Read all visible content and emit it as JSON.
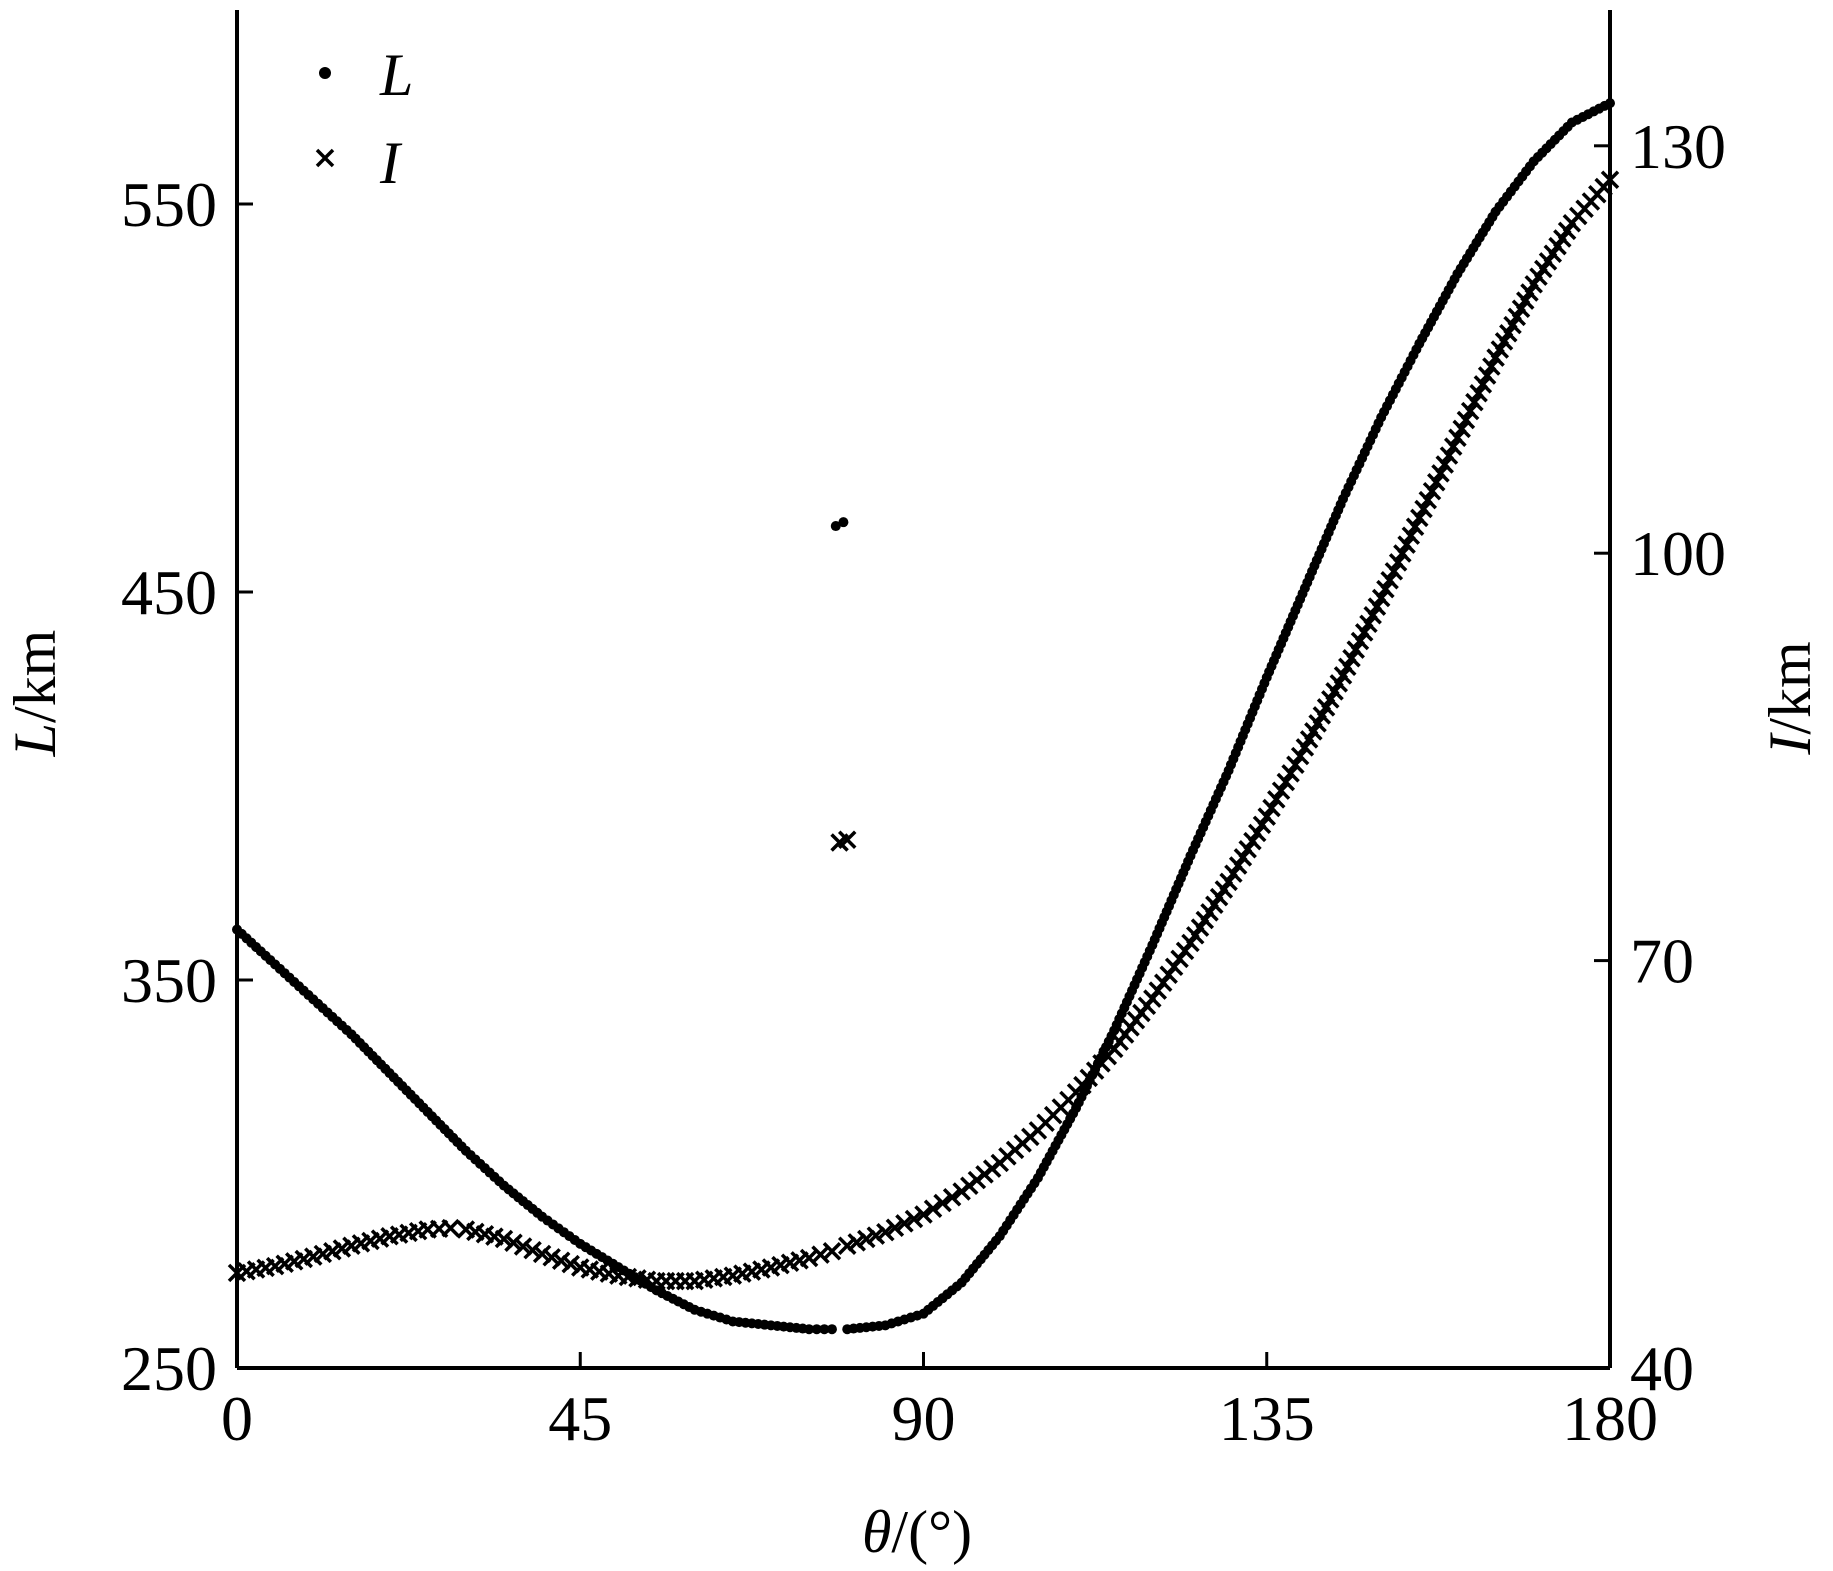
{
  "chart_data": {
    "type": "scatter",
    "x_axis": {
      "label_var": "θ",
      "label_unit": "/(°)",
      "range": [
        0,
        180
      ],
      "ticks": [
        0,
        45,
        90,
        135,
        180
      ],
      "tick_labels": [
        "0",
        "45",
        "90",
        "135",
        "180"
      ]
    },
    "y_axis_left": {
      "label_var": "L",
      "label_unit": "/km",
      "range": [
        250,
        600
      ],
      "ticks": [
        250,
        350,
        450,
        550
      ],
      "tick_labels": [
        "250",
        "350",
        "450",
        "550"
      ]
    },
    "y_axis_right": {
      "label_var": "I",
      "label_unit": "/km",
      "range": [
        40,
        140
      ],
      "ticks": [
        40,
        70,
        100,
        130
      ],
      "tick_labels": [
        "40",
        "70",
        "100",
        "130"
      ]
    },
    "legend": {
      "position": "top-left",
      "items": [
        {
          "label": "L",
          "marker": "dot"
        },
        {
          "label": "I",
          "marker": "x"
        }
      ]
    },
    "series": [
      {
        "name": "L",
        "axis": "left",
        "marker": "dot",
        "points": [
          [
            0,
            363
          ],
          [
            5,
            354
          ],
          [
            10,
            345
          ],
          [
            15,
            336
          ],
          [
            20,
            326
          ],
          [
            25,
            316
          ],
          [
            30,
            306
          ],
          [
            35,
            297
          ],
          [
            40,
            289
          ],
          [
            45,
            282
          ],
          [
            50,
            276
          ],
          [
            55,
            270
          ],
          [
            60,
            265
          ],
          [
            65,
            262
          ],
          [
            70,
            261
          ],
          [
            75,
            260
          ],
          [
            78,
            260
          ],
          [
            78.5,
            467
          ],
          [
            79.5,
            468
          ],
          [
            80,
            260
          ],
          [
            85,
            261
          ],
          [
            90,
            264
          ],
          [
            95,
            272
          ],
          [
            100,
            284
          ],
          [
            105,
            299
          ],
          [
            110,
            317
          ],
          [
            115,
            337
          ],
          [
            120,
            359
          ],
          [
            125,
            382
          ],
          [
            130,
            404
          ],
          [
            135,
            428
          ],
          [
            140,
            451
          ],
          [
            145,
            474
          ],
          [
            150,
            495
          ],
          [
            155,
            514
          ],
          [
            160,
            532
          ],
          [
            165,
            548
          ],
          [
            170,
            561
          ],
          [
            175,
            571
          ],
          [
            180,
            576
          ]
        ]
      },
      {
        "name": "I",
        "axis": "right",
        "marker": "x",
        "points": [
          [
            0,
            47
          ],
          [
            5,
            47.5
          ],
          [
            10,
            48.2
          ],
          [
            15,
            49
          ],
          [
            20,
            49.7
          ],
          [
            25,
            50.2
          ],
          [
            28,
            50.3
          ],
          [
            30,
            50.2
          ],
          [
            35,
            49.5
          ],
          [
            40,
            48.4
          ],
          [
            45,
            47.4
          ],
          [
            50,
            46.8
          ],
          [
            55,
            46.4
          ],
          [
            60,
            46.4
          ],
          [
            65,
            46.8
          ],
          [
            70,
            47.4
          ],
          [
            75,
            48.1
          ],
          [
            78,
            48.6
          ],
          [
            79,
            78.7
          ],
          [
            80,
            78.9
          ],
          [
            80,
            49
          ],
          [
            85,
            50
          ],
          [
            90,
            51.3
          ],
          [
            95,
            53
          ],
          [
            100,
            55.1
          ],
          [
            105,
            57.5
          ],
          [
            110,
            60.3
          ],
          [
            115,
            63.5
          ],
          [
            120,
            67.2
          ],
          [
            125,
            71.3
          ],
          [
            130,
            75.8
          ],
          [
            135,
            80.6
          ],
          [
            140,
            85.7
          ],
          [
            145,
            91
          ],
          [
            150,
            96.7
          ],
          [
            155,
            102.6
          ],
          [
            160,
            108.5
          ],
          [
            165,
            114.4
          ],
          [
            170,
            119.8
          ],
          [
            175,
            124.3
          ],
          [
            180,
            127.5
          ]
        ]
      }
    ]
  }
}
